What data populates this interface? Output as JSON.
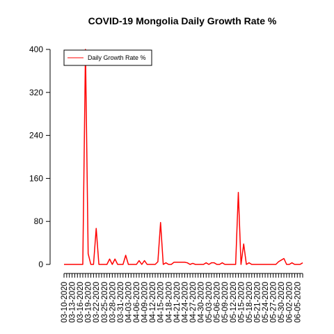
{
  "chart_data": {
    "type": "line",
    "title": "COVID-19 Mongolia Daily Growth Rate %",
    "xlabel": "",
    "ylabel": "",
    "ylim": [
      0,
      400
    ],
    "yticks": [
      0,
      80,
      160,
      240,
      320,
      400
    ],
    "x_start": "2020-03-10",
    "x_end": "2020-06-06",
    "x_tick_labels": [
      "03-10-2020",
      "03-13-2020",
      "03-16-2020",
      "03-19-2020",
      "03-22-2020",
      "03-25-2020",
      "03-28-2020",
      "03-31-2020",
      "04-03-2020",
      "04-06-2020",
      "04-09-2020",
      "04-12-2020",
      "04-15-2020",
      "04-18-2020",
      "04-21-2020",
      "04-24-2020",
      "04-27-2020",
      "04-30-2020",
      "05-03-2020",
      "05-06-2020",
      "05-09-2020",
      "05-12-2020",
      "05-15-2020",
      "05-18-2020",
      "05-21-2020",
      "05-24-2020",
      "05-27-2020",
      "05-30-2020",
      "06-02-2020",
      "06-05-2020"
    ],
    "legend": {
      "position": "top-left",
      "entries": [
        "Daily Growth Rate %"
      ]
    },
    "grid": false,
    "series": [
      {
        "name": "Daily Growth Rate %",
        "color": "#ff0000",
        "values": [
          0,
          0,
          0,
          0,
          0,
          0,
          0,
          0,
          400,
          20,
          0,
          0,
          67,
          0,
          0,
          0,
          0,
          10,
          0,
          10,
          0,
          0,
          0,
          17,
          0,
          0,
          0,
          0,
          7,
          0,
          7,
          0,
          0,
          0,
          0,
          5,
          78,
          0,
          3,
          0,
          0,
          4,
          4,
          4,
          4,
          4,
          3,
          0,
          2,
          0,
          0,
          0,
          0,
          3,
          0,
          3,
          3,
          0,
          0,
          3,
          0,
          0,
          0,
          0,
          0,
          134,
          0,
          38,
          0,
          3,
          0,
          0,
          0,
          0,
          0,
          0,
          0,
          0,
          0,
          0,
          5,
          8,
          11,
          0,
          0,
          3,
          0,
          0,
          0,
          3
        ]
      }
    ]
  }
}
